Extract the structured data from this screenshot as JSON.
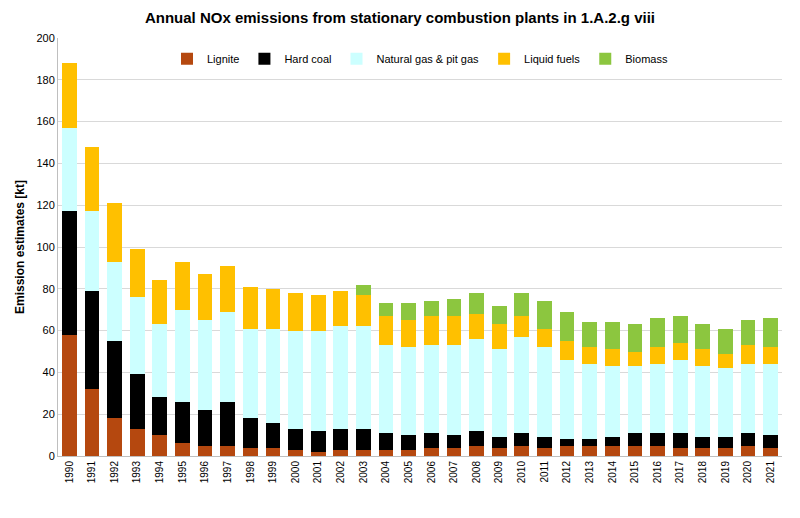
{
  "chart_data": {
    "type": "bar",
    "title": "Annual NOx emissions from stationary combustion plants in 1.A.2.g viii",
    "y_label": "Emission estimates [kt]",
    "categories": [
      "1990",
      "1991",
      "1992",
      "1993",
      "1994",
      "1995",
      "1996",
      "1997",
      "1998",
      "1999",
      "2000",
      "2001",
      "2002",
      "2003",
      "2004",
      "2005",
      "2006",
      "2007",
      "2008",
      "2009",
      "2010",
      "2011",
      "2012",
      "2013",
      "2014",
      "2015",
      "2016",
      "2017",
      "2018",
      "2019",
      "2020",
      "2021"
    ],
    "series": [
      {
        "name": "Lignite",
        "color": "#b5480f",
        "values": [
          58,
          32,
          18,
          13,
          10,
          6,
          5,
          5,
          4,
          4,
          3,
          2,
          3,
          3,
          3,
          3,
          4,
          4,
          5,
          4,
          5,
          4,
          5,
          5,
          5,
          5,
          5,
          4,
          4,
          4,
          5,
          4
        ]
      },
      {
        "name": "Hard coal",
        "color": "#000000",
        "values": [
          59,
          47,
          37,
          26,
          18,
          20,
          17,
          21,
          14,
          12,
          10,
          10,
          10,
          10,
          8,
          7,
          7,
          6,
          7,
          5,
          6,
          5,
          3,
          3,
          4,
          6,
          6,
          7,
          5,
          5,
          6,
          6
        ]
      },
      {
        "name": "Natural gas & pit gas",
        "color": "#ccffff",
        "values": [
          40,
          38,
          38,
          37,
          35,
          44,
          43,
          43,
          43,
          45,
          47,
          48,
          49,
          49,
          42,
          42,
          42,
          43,
          44,
          42,
          46,
          43,
          38,
          36,
          34,
          32,
          33,
          35,
          34,
          33,
          33,
          34
        ]
      },
      {
        "name": "Liquid fuels",
        "color": "#ffc000",
        "values": [
          31,
          31,
          28,
          23,
          21,
          23,
          22,
          22,
          20,
          19,
          18,
          17,
          17,
          15,
          14,
          13,
          14,
          14,
          12,
          12,
          10,
          9,
          9,
          8,
          8,
          7,
          8,
          8,
          8,
          7,
          9,
          8
        ]
      },
      {
        "name": "Biomass",
        "color": "#8cc63f",
        "values": [
          0,
          0,
          0,
          0,
          0,
          0,
          0,
          0,
          0,
          0,
          0,
          0,
          0,
          5,
          6,
          8,
          7,
          8,
          10,
          9,
          11,
          13,
          14,
          12,
          13,
          13,
          14,
          13,
          12,
          12,
          12,
          14
        ]
      }
    ],
    "ylim": [
      0,
      200
    ],
    "yticks": [
      0,
      20,
      40,
      60,
      80,
      100,
      120,
      140,
      160,
      180,
      200
    ],
    "stacked": true,
    "grid": true,
    "legend": "top"
  }
}
